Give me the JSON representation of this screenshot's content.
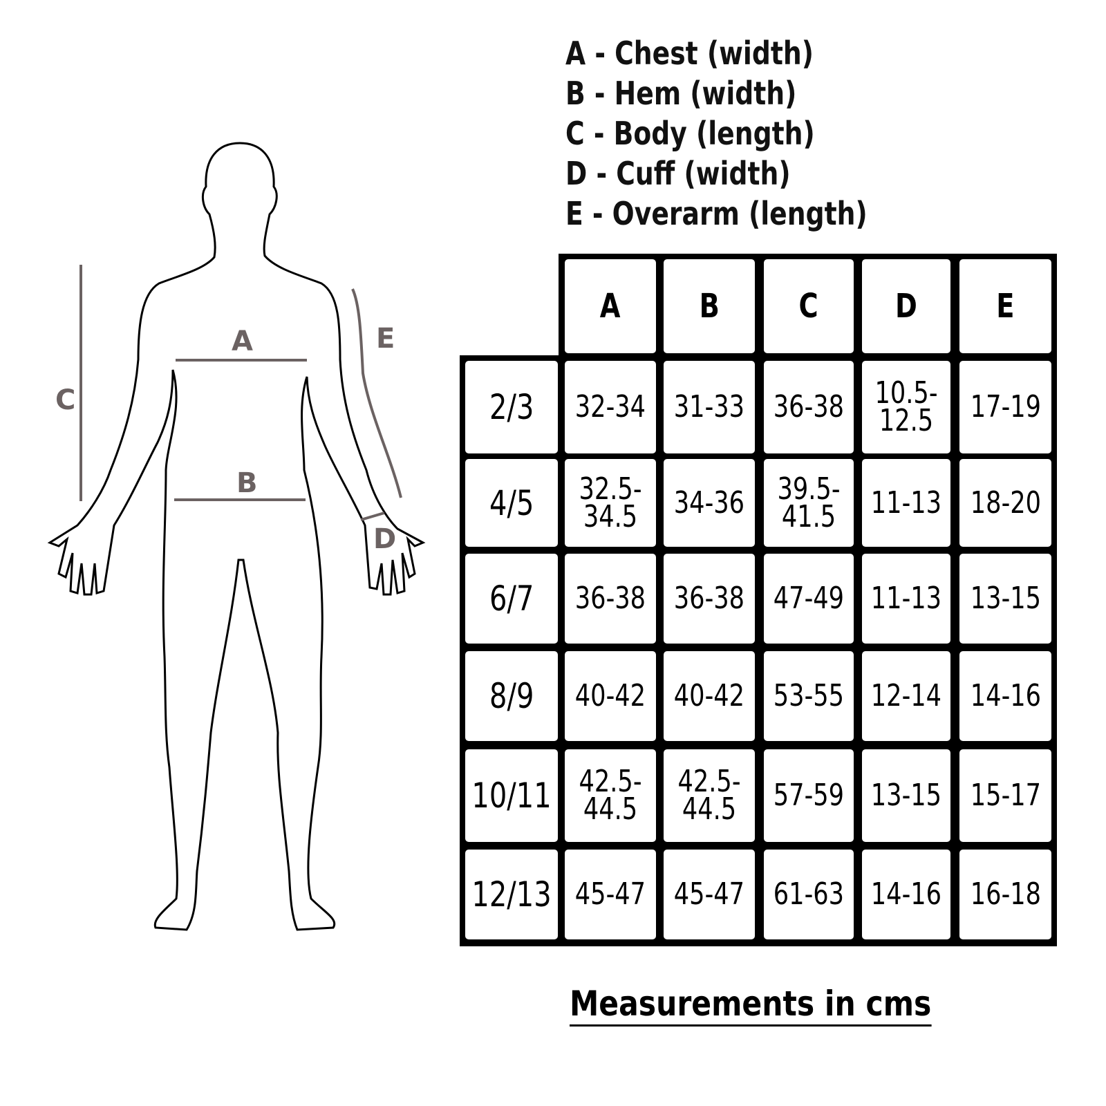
{
  "legend": [
    "A - Chest (width)",
    "B - Hem (width)",
    "C - Body (length)",
    "D - Cuff (width)",
    "E - Overarm (length)"
  ],
  "figure": {
    "labels": {
      "A": "A",
      "B": "B",
      "C": "C",
      "D": "D",
      "E": "E"
    },
    "line_color": "#6b6262"
  },
  "table": {
    "columns": [
      "A",
      "B",
      "C",
      "D",
      "E"
    ],
    "rows": [
      {
        "size": "2/3",
        "values": [
          "32-34",
          "31-33",
          "36-38",
          "10.5-\n12.5",
          "17-19"
        ]
      },
      {
        "size": "4/5",
        "values": [
          "32.5-\n34.5",
          "34-36",
          "39.5-\n41.5",
          "11-13",
          "18-20"
        ]
      },
      {
        "size": "6/7",
        "values": [
          "36-38",
          "36-38",
          "47-49",
          "11-13",
          "13-15"
        ]
      },
      {
        "size": "8/9",
        "values": [
          "40-42",
          "40-42",
          "53-55",
          "12-14",
          "14-16"
        ]
      },
      {
        "size": "10/11",
        "values": [
          "42.5-\n44.5",
          "42.5-\n44.5",
          "57-59",
          "13-15",
          "15-17"
        ]
      },
      {
        "size": "12/13",
        "values": [
          "45-47",
          "45-47",
          "61-63",
          "14-16",
          "16-18"
        ]
      }
    ]
  },
  "caption": "Measurements in cms"
}
